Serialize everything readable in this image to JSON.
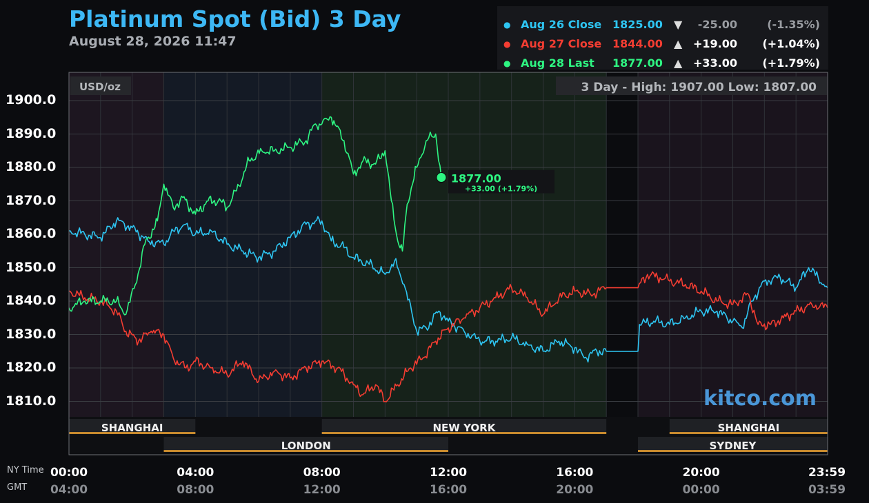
{
  "header": {
    "title": "Platinum Spot (Bid) 3 Day",
    "subtitle": "August 28, 2026 11:47"
  },
  "legend": [
    {
      "label": "Aug 26 Close",
      "price": "1825.00",
      "arrow": "▼",
      "change": "-25.00",
      "percent": "(-1.35%)",
      "color": "#2ec5f2"
    },
    {
      "label": "Aug 27 Close",
      "price": "1844.00",
      "arrow": "▲",
      "change": "+19.00",
      "percent": "(+1.04%)",
      "color": "#f43d32"
    },
    {
      "label": "Aug 28 Last",
      "price": "1877.00",
      "arrow": "▲",
      "change": "+33.00",
      "percent": "(+1.79%)",
      "color": "#2ef582"
    }
  ],
  "chart_data": {
    "type": "line",
    "title": "Platinum Spot (Bid) 3 Day",
    "unit_label": "USD/oz",
    "high_low": "3 Day - High: 1907.00  Low: 1807.00",
    "watermark": "kitco.com",
    "ylim": [
      1805,
      1905
    ],
    "y_ticks": [
      "1900.0",
      "1890.0",
      "1880.0",
      "1870.0",
      "1860.0",
      "1850.0",
      "1840.0",
      "1830.0",
      "1820.0",
      "1810.0"
    ],
    "x_range_hours": [
      0,
      24
    ],
    "x_ticks_ny": [
      "00:00",
      "04:00",
      "08:00",
      "12:00",
      "16:00",
      "20:00",
      "23:59"
    ],
    "x_ticks_gmt": [
      "04:00",
      "08:00",
      "12:00",
      "16:00",
      "20:00",
      "00:00",
      "03:59"
    ],
    "x_tick_hours": [
      0,
      4,
      8,
      12,
      16,
      20,
      23.98
    ],
    "tz_labels": [
      "NY Time",
      "GMT"
    ],
    "sessions": [
      {
        "name": "SHANGHAI",
        "row": 1,
        "start": 0,
        "end": 4
      },
      {
        "name": "NEW YORK",
        "row": 1,
        "start": 8,
        "end": 17
      },
      {
        "name": "SHANGHAI",
        "row": 1,
        "start": 19,
        "end": 24
      },
      {
        "name": "LONDON",
        "row": 2,
        "start": 3,
        "end": 12
      },
      {
        "name": "SYDNEY",
        "row": 2,
        "start": 18,
        "end": 24
      }
    ],
    "current": {
      "price": "1877.00",
      "change": "+33.00 (+1.79%)",
      "hour": 11.78,
      "value": 1877
    },
    "series": [
      {
        "name": "Aug 26 Close",
        "color": "#2ec5f2",
        "points": [
          [
            0,
            1861
          ],
          [
            0.5,
            1860
          ],
          [
            1,
            1859
          ],
          [
            1.5,
            1864
          ],
          [
            2,
            1862
          ],
          [
            2.5,
            1858
          ],
          [
            3,
            1857
          ],
          [
            3.3,
            1861
          ],
          [
            3.7,
            1863
          ],
          [
            4,
            1860
          ],
          [
            4.5,
            1861
          ],
          [
            5,
            1857
          ],
          [
            5.5,
            1855
          ],
          [
            6,
            1853
          ],
          [
            6.5,
            1855
          ],
          [
            7,
            1859
          ],
          [
            7.5,
            1863
          ],
          [
            8,
            1864
          ],
          [
            8.3,
            1858
          ],
          [
            8.7,
            1856
          ],
          [
            9,
            1853
          ],
          [
            9.5,
            1851
          ],
          [
            10,
            1848
          ],
          [
            10.3,
            1852
          ],
          [
            10.6,
            1845
          ],
          [
            11,
            1831
          ],
          [
            11.3,
            1832
          ],
          [
            11.7,
            1837
          ],
          [
            12,
            1834
          ],
          [
            12.5,
            1831
          ],
          [
            13,
            1828
          ],
          [
            13.5,
            1828
          ],
          [
            14,
            1829
          ],
          [
            14.5,
            1827
          ],
          [
            15,
            1825
          ],
          [
            15.5,
            1828
          ],
          [
            16,
            1826
          ],
          [
            16.3,
            1823
          ],
          [
            16.7,
            1825
          ],
          [
            17,
            1825
          ],
          [
            18,
            1825
          ],
          [
            18.05,
            1833
          ],
          [
            18.5,
            1834
          ],
          [
            19,
            1833
          ],
          [
            19.5,
            1835
          ],
          [
            20,
            1837
          ],
          [
            20.5,
            1837
          ],
          [
            21,
            1834
          ],
          [
            21.3,
            1832
          ],
          [
            21.6,
            1840
          ],
          [
            22,
            1846
          ],
          [
            22.5,
            1847
          ],
          [
            23,
            1844
          ],
          [
            23.4,
            1850
          ],
          [
            23.7,
            1847
          ],
          [
            24,
            1844
          ]
        ]
      },
      {
        "name": "Aug 27 Close",
        "color": "#f43d32",
        "points": [
          [
            0,
            1843
          ],
          [
            0.5,
            1841
          ],
          [
            1,
            1840
          ],
          [
            1.5,
            1837
          ],
          [
            1.8,
            1831
          ],
          [
            2.2,
            1828
          ],
          [
            2.6,
            1831
          ],
          [
            3,
            1830
          ],
          [
            3.3,
            1823
          ],
          [
            3.7,
            1820
          ],
          [
            4,
            1822
          ],
          [
            4.5,
            1820
          ],
          [
            5,
            1818
          ],
          [
            5.5,
            1822
          ],
          [
            6,
            1816
          ],
          [
            6.5,
            1819
          ],
          [
            7,
            1817
          ],
          [
            7.5,
            1820
          ],
          [
            8,
            1822
          ],
          [
            8.5,
            1820
          ],
          [
            9,
            1815
          ],
          [
            9.3,
            1812
          ],
          [
            9.7,
            1815
          ],
          [
            10,
            1810
          ],
          [
            10.4,
            1815
          ],
          [
            10.8,
            1820
          ],
          [
            11.2,
            1823
          ],
          [
            11.6,
            1828
          ],
          [
            12,
            1832
          ],
          [
            12.5,
            1835
          ],
          [
            13,
            1838
          ],
          [
            13.5,
            1841
          ],
          [
            14,
            1844
          ],
          [
            14.5,
            1841
          ],
          [
            15,
            1836
          ],
          [
            15.5,
            1841
          ],
          [
            16,
            1843
          ],
          [
            16.5,
            1842
          ],
          [
            17,
            1844
          ],
          [
            18,
            1844
          ],
          [
            18.3,
            1848
          ],
          [
            18.7,
            1847
          ],
          [
            19,
            1846
          ],
          [
            19.5,
            1845
          ],
          [
            20,
            1843
          ],
          [
            20.5,
            1840
          ],
          [
            21,
            1839
          ],
          [
            21.5,
            1842
          ],
          [
            21.8,
            1833
          ],
          [
            22.2,
            1833
          ],
          [
            22.6,
            1835
          ],
          [
            23,
            1837
          ],
          [
            23.5,
            1839
          ],
          [
            24,
            1838
          ]
        ]
      },
      {
        "name": "Aug 28 Last",
        "color": "#2ef582",
        "points": [
          [
            0,
            1838
          ],
          [
            0.5,
            1840
          ],
          [
            1,
            1840
          ],
          [
            1.5,
            1840
          ],
          [
            1.8,
            1836
          ],
          [
            2.1,
            1845
          ],
          [
            2.4,
            1857
          ],
          [
            2.8,
            1864
          ],
          [
            3,
            1875
          ],
          [
            3.3,
            1868
          ],
          [
            3.6,
            1871
          ],
          [
            4,
            1866
          ],
          [
            4.4,
            1870
          ],
          [
            4.8,
            1870
          ],
          [
            5,
            1868
          ],
          [
            5.3,
            1873
          ],
          [
            5.7,
            1882
          ],
          [
            6.1,
            1885
          ],
          [
            6.5,
            1885
          ],
          [
            7,
            1886
          ],
          [
            7.5,
            1888
          ],
          [
            7.8,
            1893
          ],
          [
            8,
            1893
          ],
          [
            8.3,
            1895
          ],
          [
            8.7,
            1888
          ],
          [
            9,
            1878
          ],
          [
            9.3,
            1882
          ],
          [
            9.7,
            1881
          ],
          [
            10,
            1885
          ],
          [
            10.2,
            1870
          ],
          [
            10.4,
            1858
          ],
          [
            10.55,
            1855
          ],
          [
            10.7,
            1869
          ],
          [
            11,
            1880
          ],
          [
            11.3,
            1888
          ],
          [
            11.6,
            1890
          ],
          [
            11.78,
            1877
          ]
        ]
      }
    ]
  }
}
